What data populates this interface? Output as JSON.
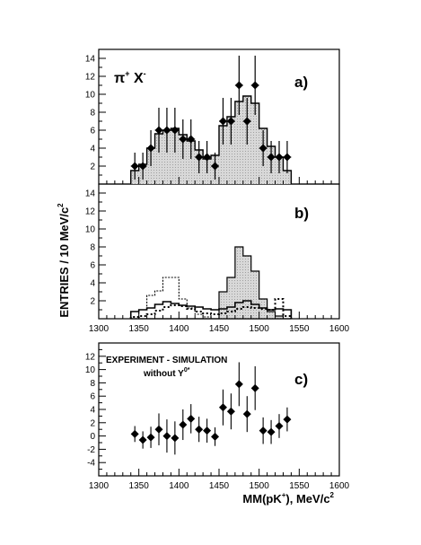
{
  "ylabel": "ENTRIES / 10 MeV/c",
  "ylabel_sup": "2",
  "xlabel_main": "MM(pK",
  "xlabel_sup": "+",
  "xlabel_rest": "), MeV/c",
  "xlabel_sup2": "2",
  "chart_data": [
    {
      "type": "histogram",
      "panel_label": "a)",
      "annotation": {
        "main": "π",
        "sup1": "+",
        "mid": " X",
        "sup2": "-"
      },
      "xlim": [
        1300,
        1600
      ],
      "ylim": [
        0,
        15
      ],
      "yticks": [
        2,
        4,
        6,
        8,
        10,
        12,
        14
      ],
      "bin_edges": [
        1340,
        1350,
        1360,
        1370,
        1380,
        1390,
        1400,
        1410,
        1420,
        1430,
        1440,
        1450,
        1460,
        1470,
        1480,
        1490,
        1500,
        1510,
        1520,
        1530,
        1540
      ],
      "histogram_simulation": [
        1.5,
        2.2,
        4.0,
        5.6,
        6.0,
        6.2,
        5.5,
        4.8,
        3.8,
        2.8,
        3.2,
        6.5,
        7.5,
        9.2,
        9.8,
        9.0,
        6.2,
        4.2,
        3.0,
        1.5
      ],
      "experiment": {
        "x": [
          1345,
          1355,
          1365,
          1375,
          1385,
          1395,
          1405,
          1415,
          1425,
          1435,
          1445,
          1455,
          1465,
          1475,
          1485,
          1495,
          1505,
          1515,
          1525,
          1535
        ],
        "y": [
          2,
          2,
          4,
          6,
          6,
          6,
          5,
          5,
          3,
          3,
          2,
          7,
          7,
          11,
          7,
          11,
          4,
          3,
          3,
          3
        ],
        "err": [
          1.5,
          1.5,
          2.0,
          2.5,
          2.5,
          2.5,
          2.2,
          2.2,
          1.8,
          1.8,
          1.5,
          2.6,
          2.6,
          3.3,
          2.6,
          3.3,
          2.0,
          1.8,
          1.8,
          1.8
        ]
      }
    },
    {
      "type": "histogram",
      "panel_label": "b)",
      "xlim": [
        1300,
        1600
      ],
      "ylim": [
        0,
        15
      ],
      "xticks": [
        1300,
        1350,
        1400,
        1450,
        1500,
        1550,
        1600
      ],
      "yticks": [
        2,
        4,
        6,
        8,
        10,
        12,
        14
      ],
      "bin_edges": [
        1340,
        1350,
        1360,
        1370,
        1380,
        1390,
        1400,
        1410,
        1420,
        1430,
        1440,
        1450,
        1460,
        1470,
        1480,
        1490,
        1500,
        1510,
        1520,
        1530,
        1540
      ],
      "component_signal_shaded": [
        0,
        0,
        0,
        0,
        0,
        0,
        0,
        0,
        0,
        0,
        0,
        3.0,
        4.6,
        8.0,
        7.0,
        5.3,
        2.2,
        0.8,
        0.3,
        0
      ],
      "component_solid": [
        0.8,
        1.0,
        1.2,
        1.6,
        1.9,
        1.7,
        1.5,
        1.4,
        1.3,
        1.1,
        1.0,
        1.1,
        1.3,
        1.8,
        2.0,
        1.6,
        1.2,
        1.0,
        1.1,
        1.0
      ],
      "component_dashed": [
        0,
        1.0,
        2.6,
        3.1,
        4.6,
        4.6,
        2.2,
        1.2,
        0.5,
        0.2,
        0,
        0,
        0,
        0,
        0,
        0,
        0,
        0,
        0,
        0
      ],
      "component_dotted": [
        0.2,
        0.3,
        0.5,
        0.9,
        1.3,
        1.5,
        1.4,
        1.1,
        0.8,
        0.6,
        0.5,
        0.6,
        0.8,
        1.1,
        1.3,
        1.2,
        1.1,
        1.0,
        2.2,
        0.3
      ]
    },
    {
      "type": "scatter",
      "panel_label": "c)",
      "annotation_line1": "EXPERIMENT - SIMULATION",
      "annotation_line2": "without Y",
      "annotation_sup": "0*",
      "xlim": [
        1300,
        1600
      ],
      "ylim": [
        -6,
        14
      ],
      "xticks": [
        1300,
        1350,
        1400,
        1450,
        1500,
        1550,
        1600
      ],
      "yticks": [
        -4,
        -2,
        0,
        2,
        4,
        6,
        8,
        10,
        12
      ],
      "experiment": {
        "x": [
          1345,
          1355,
          1365,
          1375,
          1385,
          1395,
          1405,
          1415,
          1425,
          1435,
          1445,
          1455,
          1465,
          1475,
          1485,
          1495,
          1505,
          1515,
          1525,
          1535
        ],
        "y": [
          0.3,
          -0.6,
          -0.2,
          1.0,
          0.0,
          -0.3,
          1.7,
          2.6,
          1.0,
          0.8,
          -0.1,
          4.3,
          3.7,
          7.8,
          3.3,
          7.2,
          0.8,
          0.6,
          1.5,
          2.5
        ],
        "err": [
          1.2,
          1.3,
          1.6,
          2.4,
          2.5,
          2.5,
          2.3,
          2.2,
          1.9,
          1.8,
          1.4,
          2.7,
          2.7,
          3.3,
          2.7,
          3.3,
          2.0,
          1.8,
          1.8,
          1.8
        ]
      }
    }
  ]
}
